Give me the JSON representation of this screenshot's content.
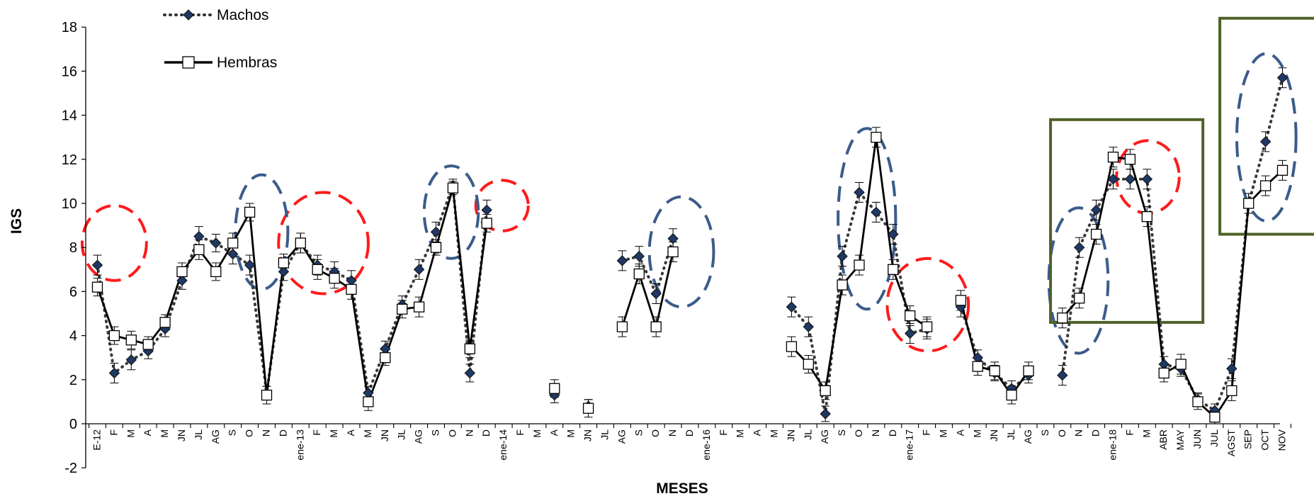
{
  "chart_data": {
    "type": "line",
    "xlabel": "MESES",
    "ylabel": "IGS",
    "ylim": [
      -2,
      18
    ],
    "yticks": [
      -2,
      0,
      2,
      4,
      6,
      8,
      10,
      12,
      14,
      16,
      18
    ],
    "grid": false,
    "legend_position": "top-left",
    "categories": [
      "E-12",
      "F",
      "M",
      "A",
      "M",
      "JN",
      "JL",
      "AG",
      "S",
      "O",
      "N",
      "D",
      "ene-13",
      "F",
      "M",
      "A",
      "M",
      "JN",
      "JL",
      "AG",
      "S",
      "O",
      "N",
      "D",
      "ene-14",
      "F",
      "M",
      "A",
      "M",
      "JN",
      "JL",
      "AG",
      "S",
      "O",
      "N",
      "D",
      "ene-16",
      "F",
      "M",
      "A",
      "M",
      "JN",
      "JL",
      "AG",
      "S",
      "O",
      "N",
      "D",
      "ene-17",
      "F",
      "M",
      "A",
      "M",
      "JN",
      "JL",
      "AG",
      "S",
      "O",
      "N",
      "D",
      "ene-18",
      "F",
      "M",
      "ABR",
      "MAY",
      "JUN",
      "JUL",
      "AGST",
      "SEP",
      "OCT",
      "NOV"
    ],
    "series": [
      {
        "name": "Machos",
        "style": "dotted",
        "marker": "diamond",
        "color": "#17375e",
        "values": [
          7.2,
          2.3,
          2.9,
          3.3,
          4.3,
          6.5,
          8.5,
          8.2,
          7.7,
          7.2,
          1.4,
          6.9,
          8.2,
          7.2,
          6.9,
          6.5,
          1.4,
          3.4,
          5.4,
          7.0,
          8.7,
          10.8,
          2.3,
          9.7,
          null,
          null,
          null,
          1.3,
          null,
          0.8,
          null,
          7.4,
          7.6,
          5.9,
          8.4,
          null,
          null,
          null,
          null,
          null,
          null,
          5.3,
          4.4,
          0.45,
          7.6,
          10.5,
          9.6,
          8.6,
          4.1,
          4.3,
          null,
          5.3,
          3.0,
          2.3,
          1.6,
          2.2,
          null,
          2.2,
          8.0,
          9.7,
          11.1,
          11.1,
          11.1,
          2.7,
          2.5,
          1.1,
          0.6,
          2.5,
          10.0,
          12.8,
          15.7
        ],
        "errors": [
          0.45,
          0.45,
          0.45,
          0.35,
          0.35,
          0.4,
          0.45,
          0.4,
          0.45,
          0.45,
          0.3,
          0.4,
          0.45,
          0.45,
          0.45,
          0.45,
          0.3,
          0.35,
          0.4,
          0.45,
          0.45,
          0.3,
          0.4,
          0.45,
          null,
          null,
          null,
          0.35,
          null,
          0.3,
          null,
          0.45,
          0.45,
          0.45,
          0.45,
          null,
          null,
          null,
          null,
          null,
          null,
          0.45,
          0.45,
          0.35,
          0.45,
          0.45,
          0.45,
          0.45,
          0.45,
          0.45,
          null,
          0.45,
          0.35,
          0.35,
          0.35,
          0.35,
          null,
          0.45,
          0.45,
          0.45,
          0.45,
          0.45,
          0.45,
          0.35,
          0.35,
          0.3,
          0.3,
          0.45,
          0.45,
          0.45,
          0.45
        ]
      },
      {
        "name": "Hembras",
        "style": "solid",
        "marker": "square",
        "color": "#000000",
        "values": [
          6.2,
          4.0,
          3.8,
          3.6,
          4.6,
          6.9,
          7.9,
          6.9,
          8.2,
          9.6,
          1.3,
          7.3,
          8.2,
          7.0,
          6.6,
          6.1,
          1.0,
          3.0,
          5.2,
          5.3,
          8.0,
          10.7,
          3.4,
          9.1,
          null,
          null,
          null,
          1.6,
          null,
          0.7,
          null,
          4.4,
          6.8,
          4.4,
          7.8,
          null,
          null,
          null,
          null,
          null,
          null,
          3.5,
          2.7,
          1.5,
          6.3,
          7.2,
          13.0,
          7.0,
          4.9,
          4.4,
          null,
          5.6,
          2.6,
          2.4,
          1.3,
          2.4,
          null,
          4.8,
          5.7,
          8.6,
          12.1,
          12.0,
          9.4,
          2.3,
          2.7,
          1.0,
          0.3,
          1.5,
          10.0,
          10.8,
          11.5
        ],
        "errors": [
          0.4,
          0.4,
          0.4,
          0.35,
          0.35,
          0.4,
          0.45,
          0.4,
          0.45,
          0.4,
          0.4,
          0.4,
          0.45,
          0.45,
          0.45,
          0.45,
          0.4,
          0.35,
          0.4,
          0.45,
          0.35,
          0.3,
          0.4,
          0.4,
          null,
          null,
          null,
          0.4,
          null,
          0.4,
          null,
          0.45,
          0.45,
          0.45,
          0.45,
          null,
          null,
          null,
          null,
          null,
          null,
          0.45,
          0.4,
          0.4,
          0.45,
          0.45,
          0.45,
          0.45,
          0.45,
          0.45,
          null,
          0.45,
          0.4,
          0.4,
          0.4,
          0.4,
          null,
          0.45,
          0.45,
          0.45,
          0.45,
          0.45,
          0.45,
          0.4,
          0.45,
          0.35,
          0.3,
          0.45,
          0.45,
          0.45,
          0.45
        ]
      }
    ],
    "annotations": {
      "red_ellipses": [
        {
          "cx": 1.0,
          "cy": 8.2,
          "rx": 1.9,
          "ry": 1.7
        },
        {
          "cx": 13.35,
          "cy": 8.2,
          "rx": 2.65,
          "ry": 2.3
        },
        {
          "cx": 23.9,
          "cy": 9.9,
          "rx": 1.55,
          "ry": 1.15
        },
        {
          "cx": 49.05,
          "cy": 5.4,
          "rx": 2.4,
          "ry": 2.1
        },
        {
          "cx": 62.05,
          "cy": 11.2,
          "rx": 1.85,
          "ry": 1.65
        }
      ],
      "blue_ellipses": [
        {
          "cx": 9.7,
          "cy": 8.7,
          "rx": 1.55,
          "ry": 2.6
        },
        {
          "cx": 20.9,
          "cy": 9.6,
          "rx": 1.6,
          "ry": 2.1
        },
        {
          "cx": 34.5,
          "cy": 7.8,
          "rx": 1.9,
          "ry": 2.5
        },
        {
          "cx": 45.45,
          "cy": 9.3,
          "rx": 1.7,
          "ry": 4.1
        },
        {
          "cx": 57.95,
          "cy": 6.5,
          "rx": 1.75,
          "ry": 3.3
        },
        {
          "cx": 69.05,
          "cy": 13.0,
          "rx": 1.75,
          "ry": 3.8
        }
      ],
      "green_boxes": [
        {
          "x0": 56.3,
          "x1": 65.3,
          "y0": 4.6,
          "y1": 13.8
        },
        {
          "x0": 66.3,
          "x1": 72.8,
          "y0": 8.6,
          "y1": 18.4
        }
      ]
    },
    "colors": {
      "red_dash": "#ff1a1a",
      "blue_dash": "#3b5c8a",
      "green_box": "#4f6228",
      "diamond_fill": "#1f3864"
    }
  }
}
